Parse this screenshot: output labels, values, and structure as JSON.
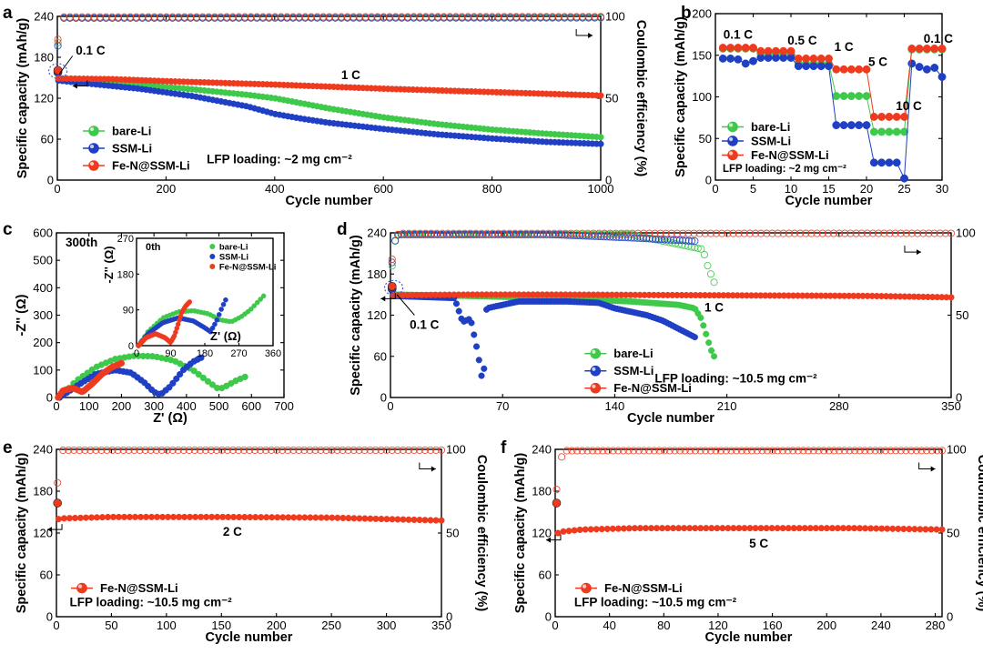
{
  "colors": {
    "bare": "#3ec94a",
    "ssm": "#1f3fc4",
    "fen": "#ee3b1f"
  },
  "chart_data": [
    {
      "id": "a",
      "type": "line",
      "panel_label": "a",
      "xlabel": "Cycle number",
      "ylabel": "Specific capacity (mAh/g)",
      "y2label": "Coulombic efficiency (%)",
      "xlim": [
        0,
        1000
      ],
      "ylim": [
        0,
        240
      ],
      "y2lim": [
        0,
        100
      ],
      "xticks": [
        "0",
        "200",
        "400",
        "600",
        "800",
        "1000"
      ],
      "xtick_values": [
        0,
        200,
        400,
        600,
        800,
        1000
      ],
      "yticks": [
        "0",
        "60",
        "120",
        "180",
        "240"
      ],
      "ytick_values": [
        0,
        60,
        120,
        180,
        240
      ],
      "y2ticks": [
        "0",
        "50",
        "100"
      ],
      "y2tick_values": [
        0,
        50,
        100
      ],
      "legend": [
        "bare-Li",
        "SSM-Li",
        "Fe-N@SSM-Li"
      ],
      "legend_position": "bottom-left",
      "annotations": [
        "0.1 C",
        "1 C",
        "LFP loading: ~2 mg cm⁻²"
      ],
      "capacity": {
        "bare-Li": {
          "x": [
            1,
            2,
            50,
            150,
            250,
            350,
            400,
            500,
            600,
            700,
            800,
            900,
            1000
          ],
          "y": [
            160,
            148,
            146,
            140,
            133,
            125,
            120,
            105,
            92,
            82,
            74,
            68,
            63
          ]
        },
        "SSM-Li": {
          "x": [
            1,
            2,
            50,
            150,
            250,
            350,
            400,
            450,
            500,
            600,
            700,
            800,
            900,
            1000
          ],
          "y": [
            158,
            146,
            142,
            134,
            123,
            108,
            97,
            90,
            84,
            75,
            67,
            61,
            56,
            53
          ]
        },
        "Fe-N@SSM-Li": {
          "x": [
            1,
            2,
            100,
            200,
            400,
            600,
            800,
            1000
          ],
          "y": [
            161,
            149,
            148,
            145,
            140,
            134,
            129,
            124
          ]
        }
      },
      "coulombic_efficiency": {
        "bare-Li": {
          "x": [
            1,
            5,
            10,
            1000
          ],
          "y": [
            84,
            93,
            99,
            99
          ]
        },
        "SSM-Li": {
          "x": [
            1,
            5,
            10,
            1000
          ],
          "y": [
            82,
            92,
            99,
            99.3
          ]
        },
        "Fe-N@SSM-Li": {
          "x": [
            1,
            5,
            10,
            1000
          ],
          "y": [
            86,
            96,
            99.6,
            99.8
          ]
        }
      }
    },
    {
      "id": "b",
      "type": "scatter",
      "panel_label": "b",
      "xlabel": "Cycle number",
      "ylabel": "Specific capacity (mAh/g)",
      "xlim": [
        0,
        30
      ],
      "ylim": [
        0,
        200
      ],
      "xticks": [
        "0",
        "5",
        "10",
        "15",
        "20",
        "25",
        "30"
      ],
      "xtick_values": [
        0,
        5,
        10,
        15,
        20,
        25,
        30
      ],
      "yticks": [
        "0",
        "50",
        "100",
        "150",
        "200"
      ],
      "ytick_values": [
        0,
        50,
        100,
        150,
        200
      ],
      "legend": [
        "bare-Li",
        "SSM-Li",
        "Fe-N@SSM-Li"
      ],
      "legend_position": "bottom-left",
      "rate_labels": [
        "0.1 C",
        "0.5 C",
        "1 C",
        "5 C",
        "10 C",
        "0.1 C"
      ],
      "annotations": [
        "LFP loading: ~2 mg cm⁻²"
      ],
      "capacity": {
        "bare-Li": {
          "x": [
            1,
            2,
            3,
            4,
            5,
            6,
            7,
            8,
            9,
            10,
            11,
            12,
            13,
            14,
            15,
            16,
            17,
            18,
            19,
            20,
            21,
            22,
            23,
            24,
            25,
            26,
            27,
            28,
            29,
            30
          ],
          "y": [
            158,
            158,
            158,
            158,
            158,
            152,
            152,
            152,
            152,
            152,
            140,
            140,
            140,
            140,
            140,
            101,
            101,
            101,
            101,
            101,
            58,
            58,
            58,
            58,
            58,
            157,
            157,
            157,
            157,
            157
          ]
        },
        "SSM-Li": {
          "x": [
            1,
            2,
            3,
            4,
            5,
            6,
            7,
            8,
            9,
            10,
            11,
            12,
            13,
            14,
            15,
            16,
            17,
            18,
            19,
            20,
            21,
            22,
            23,
            24,
            25,
            26,
            27,
            28,
            29,
            30
          ],
          "y": [
            146,
            146,
            145,
            140,
            143,
            147,
            147,
            147,
            147,
            147,
            137,
            137,
            137,
            137,
            137,
            66,
            66,
            66,
            66,
            66,
            21,
            21,
            21,
            21,
            2,
            140,
            136,
            133,
            135,
            124
          ]
        },
        "Fe-N@SSM-Li": {
          "x": [
            1,
            2,
            3,
            4,
            5,
            6,
            7,
            8,
            9,
            10,
            11,
            12,
            13,
            14,
            15,
            16,
            17,
            18,
            19,
            20,
            21,
            22,
            23,
            24,
            25,
            26,
            27,
            28,
            29,
            30
          ],
          "y": [
            159,
            159,
            159,
            159,
            159,
            155,
            155,
            155,
            155,
            155,
            146,
            146,
            146,
            146,
            146,
            133,
            133,
            133,
            133,
            133,
            76,
            76,
            76,
            76,
            76,
            158,
            158,
            158,
            158,
            158
          ]
        }
      }
    },
    {
      "id": "c",
      "type": "line",
      "panel_label": "c",
      "xlabel": "Z' (Ω)",
      "ylabel": "-Z'' (Ω)",
      "xlim": [
        0,
        700
      ],
      "ylim": [
        0,
        600
      ],
      "xticks": [
        "0",
        "100",
        "200",
        "300",
        "400",
        "500",
        "600",
        "700"
      ],
      "xtick_values": [
        0,
        100,
        200,
        300,
        400,
        500,
        600,
        700
      ],
      "yticks": [
        "0",
        "100",
        "200",
        "300",
        "400",
        "500",
        "600"
      ],
      "ytick_values": [
        0,
        100,
        200,
        300,
        400,
        500,
        600
      ],
      "title": "300th",
      "series": {
        "bare-Li": {
          "x": [
            10,
            60,
            120,
            180,
            240,
            300,
            360,
            420,
            470,
            500,
            520,
            550,
            580
          ],
          "y": [
            0,
            60,
            110,
            140,
            152,
            150,
            135,
            100,
            55,
            30,
            40,
            60,
            75
          ]
        },
        "SSM-Li": {
          "x": [
            10,
            60,
            120,
            180,
            230,
            270,
            300,
            320,
            350,
            390,
            420,
            445
          ],
          "y": [
            0,
            40,
            85,
            100,
            90,
            55,
            20,
            10,
            40,
            100,
            130,
            145
          ]
        },
        "Fe-N@SSM-Li": {
          "x": [
            5,
            20,
            50,
            80,
            110,
            140,
            170,
            190,
            200
          ],
          "y": [
            0,
            25,
            35,
            20,
            50,
            85,
            110,
            120,
            125
          ]
        }
      },
      "inset": {
        "title": "0th",
        "xlabel": "Z' (Ω)",
        "ylabel": "-Z'' (Ω)",
        "xlim": [
          0,
          360
        ],
        "ylim": [
          0,
          270
        ],
        "xticks": [
          "0",
          "90",
          "180",
          "270",
          "360"
        ],
        "xtick_values": [
          0,
          90,
          180,
          270,
          360
        ],
        "yticks": [
          "0",
          "90",
          "180",
          "270"
        ],
        "ytick_values": [
          0,
          90,
          180,
          270
        ],
        "legend": [
          "bare-Li",
          "SSM-Li",
          "Fe-N@SSM-Li"
        ],
        "legend_position": "top-right",
        "series": {
          "bare-Li": {
            "x": [
              5,
              30,
              70,
              110,
              150,
              190,
              220,
              250,
              275,
              300,
              320,
              335
            ],
            "y": [
              0,
              35,
              70,
              85,
              88,
              80,
              65,
              60,
              72,
              90,
              110,
              125
            ]
          },
          "SSM-Li": {
            "x": [
              5,
              30,
              70,
              110,
              150,
              180,
              195,
              210,
              225,
              235
            ],
            "y": [
              0,
              30,
              58,
              70,
              62,
              45,
              35,
              60,
              95,
              115
            ]
          },
          "Fe-N@SSM-Li": {
            "x": [
              5,
              25,
              50,
              75,
              90,
              100,
              110,
              120,
              130,
              140
            ],
            "y": [
              0,
              20,
              30,
              20,
              8,
              25,
              55,
              85,
              100,
              110
            ]
          }
        }
      }
    },
    {
      "id": "d",
      "type": "line",
      "panel_label": "d",
      "xlabel": "Cycle number",
      "ylabel": "Specific capacity (mAh/g)",
      "y2label": "Coulombic efficiency (%)",
      "xlim": [
        0,
        350
      ],
      "ylim": [
        0,
        240
      ],
      "y2lim": [
        0,
        100
      ],
      "xticks": [
        "0",
        "70",
        "140",
        "210",
        "280",
        "350"
      ],
      "xtick_values": [
        0,
        70,
        140,
        210,
        280,
        350
      ],
      "yticks": [
        "0",
        "60",
        "120",
        "180",
        "240"
      ],
      "ytick_values": [
        0,
        60,
        120,
        180,
        240
      ],
      "y2ticks": [
        "0",
        "50",
        "100"
      ],
      "y2tick_values": [
        0,
        50,
        100
      ],
      "legend": [
        "bare-Li",
        "SSM-Li",
        "Fe-N@SSM-Li"
      ],
      "legend_position": "bottom-center",
      "annotations": [
        "0.1 C",
        "1 C",
        "LFP loading: ~10.5 mg cm⁻²"
      ],
      "capacity": {
        "bare-Li": {
          "x": [
            1,
            2,
            50,
            100,
            150,
            180,
            190,
            194,
            196,
            198,
            200,
            202
          ],
          "y": [
            160,
            150,
            148,
            145,
            140,
            135,
            130,
            115,
            100,
            85,
            70,
            60
          ]
        },
        "SSM-Li": {
          "x": [
            1,
            2,
            40,
            45,
            50,
            55,
            56,
            58,
            60,
            80,
            110,
            130,
            140,
            150,
            160,
            170,
            180,
            190
          ],
          "y": [
            158,
            148,
            145,
            110,
            115,
            60,
            40,
            20,
            130,
            140,
            140,
            138,
            130,
            125,
            120,
            112,
            100,
            88
          ]
        },
        "Fe-N@SSM-Li": {
          "x": [
            1,
            2,
            50,
            100,
            200,
            300,
            350
          ],
          "y": [
            162,
            149,
            150,
            150,
            149,
            148,
            146
          ]
        }
      },
      "coulombic_efficiency": {
        "bare-Li": {
          "x": [
            1,
            3,
            5,
            100,
            150,
            195,
            198,
            200,
            202
          ],
          "y": [
            80,
            95,
            99,
            99,
            99,
            90,
            80,
            75,
            70
          ]
        },
        "SSM-Li": {
          "x": [
            1,
            3,
            5,
            60,
            100,
            150,
            190
          ],
          "y": [
            82,
            96,
            99,
            99,
            99,
            97,
            95
          ]
        },
        "Fe-N@SSM-Li": {
          "x": [
            1,
            3,
            5,
            350
          ],
          "y": [
            84,
            97,
            99.6,
            99.7
          ]
        }
      }
    },
    {
      "id": "e",
      "type": "line",
      "panel_label": "e",
      "xlabel": "Cycle number",
      "ylabel": "Specific capacity (mAh/g)",
      "y2label": "Coulombic efficiency (%)",
      "xlim": [
        0,
        350
      ],
      "ylim": [
        0,
        240
      ],
      "y2lim": [
        0,
        100
      ],
      "xticks": [
        "0",
        "50",
        "100",
        "150",
        "200",
        "250",
        "300",
        "350"
      ],
      "xtick_values": [
        0,
        50,
        100,
        150,
        200,
        250,
        300,
        350
      ],
      "yticks": [
        "0",
        "60",
        "120",
        "180",
        "240"
      ],
      "ytick_values": [
        0,
        60,
        120,
        180,
        240
      ],
      "y2ticks": [
        "0",
        "50",
        "100"
      ],
      "y2tick_values": [
        0,
        50,
        100
      ],
      "legend": [
        "Fe-N@SSM-Li"
      ],
      "legend_position": "bottom-left",
      "annotations": [
        "2 C",
        "LFP loading: ~10.5 mg cm⁻²"
      ],
      "capacity": {
        "Fe-N@SSM-Li": {
          "x": [
            1,
            2,
            5,
            50,
            150,
            250,
            300,
            350
          ],
          "y": [
            163,
            140,
            141,
            143,
            143,
            142,
            140,
            138
          ]
        }
      },
      "coulombic_efficiency": {
        "Fe-N@SSM-Li": {
          "x": [
            1,
            3,
            6,
            350
          ],
          "y": [
            80,
            92,
            99.5,
            99.5
          ]
        }
      }
    },
    {
      "id": "f",
      "type": "line",
      "panel_label": "f",
      "xlabel": "Cycle number",
      "ylabel": "Specific capacity (mAh/g)",
      "y2label": "Coulombic efficiency (%)",
      "xlim": [
        0,
        285
      ],
      "ylim": [
        0,
        240
      ],
      "y2lim": [
        0,
        100
      ],
      "xticks": [
        "0",
        "40",
        "80",
        "120",
        "160",
        "200",
        "240",
        "280"
      ],
      "xtick_values": [
        0,
        40,
        80,
        120,
        160,
        200,
        240,
        280
      ],
      "yticks": [
        "0",
        "60",
        "120",
        "180",
        "240"
      ],
      "ytick_values": [
        0,
        60,
        120,
        180,
        240
      ],
      "y2ticks": [
        "0",
        "50",
        "100"
      ],
      "y2tick_values": [
        0,
        50,
        100
      ],
      "legend": [
        "Fe-N@SSM-Li"
      ],
      "legend_position": "bottom-left",
      "annotations": [
        "5 C",
        "LFP loading: ~10.5 mg cm⁻²"
      ],
      "capacity": {
        "Fe-N@SSM-Li": {
          "x": [
            1,
            2,
            5,
            20,
            60,
            140,
            220,
            285
          ],
          "y": [
            163,
            120,
            122,
            125,
            127,
            127,
            127,
            125
          ]
        }
      },
      "coulombic_efficiency": {
        "Fe-N@SSM-Li": {
          "x": [
            1,
            3,
            6,
            285
          ],
          "y": [
            76,
            90,
            99.2,
            99.3
          ]
        }
      }
    }
  ]
}
